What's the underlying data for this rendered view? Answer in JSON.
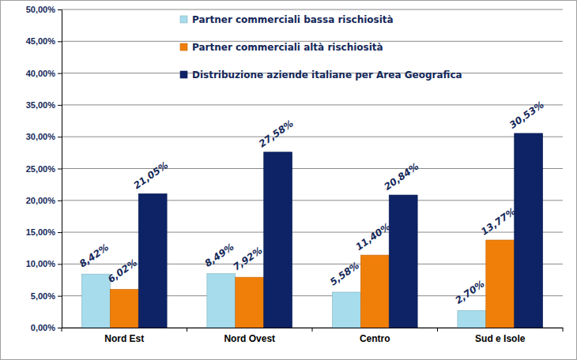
{
  "chart_data": {
    "type": "bar",
    "categories": [
      "Nord Est",
      "Nord Ovest",
      "Centro",
      "Sud e Isole"
    ],
    "series": [
      {
        "name": "Partner commerciali bassa rischiosità",
        "color": "#a6dcec",
        "values": [
          8.42,
          8.49,
          5.58,
          2.7
        ],
        "value_labels": [
          "8,42%",
          "8,49%",
          "5,58%",
          "2,70%"
        ]
      },
      {
        "name": "Partner commerciali altà rischiosità",
        "color": "#f07f09",
        "values": [
          6.02,
          7.92,
          11.4,
          13.77
        ],
        "value_labels": [
          "6,02%",
          "7,92%",
          "11,40%",
          "13,77%"
        ]
      },
      {
        "name": "Distribuzione aziende italiane per Area Geografica",
        "color": "#0d2366",
        "values": [
          21.05,
          27.58,
          20.84,
          30.53
        ],
        "value_labels": [
          "21,05%",
          "27,58%",
          "20,84%",
          "30,53%"
        ]
      }
    ],
    "ylim": [
      0,
      50
    ],
    "yticks": [
      {
        "value": 0,
        "label": "0,00%"
      },
      {
        "value": 5,
        "label": "5,00%"
      },
      {
        "value": 10,
        "label": "10,00%"
      },
      {
        "value": 15,
        "label": "15,00%"
      },
      {
        "value": 20,
        "label": "20,00%"
      },
      {
        "value": 25,
        "label": "25,00%"
      },
      {
        "value": 30,
        "label": "30,00%"
      },
      {
        "value": 35,
        "label": "35,00%"
      },
      {
        "value": 40,
        "label": "40,00%"
      },
      {
        "value": 45,
        "label": "45,00%"
      },
      {
        "value": 50,
        "label": "50,00%"
      }
    ],
    "grid": true,
    "legend": "top",
    "data_labels": true
  }
}
